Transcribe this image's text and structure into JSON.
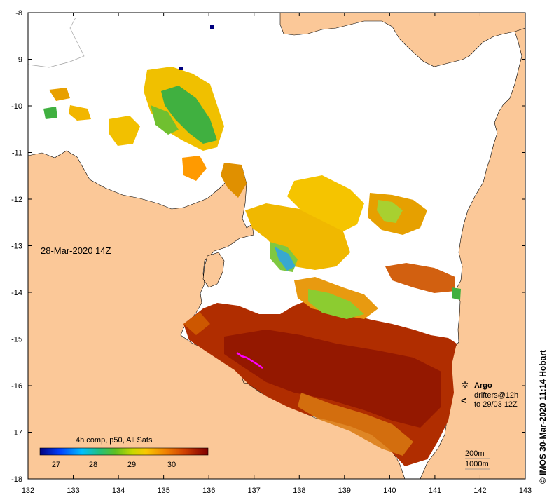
{
  "map": {
    "timestamp_label": "28-Mar-2020 14Z",
    "credit": "© IMOS 30-Mar-2020 11:14 Hobart",
    "colors": {
      "land": "#fbc898",
      "no_data": "#ffffff",
      "frame": "#000000"
    },
    "lon_ticks": [
      "132",
      "133",
      "134",
      "135",
      "136",
      "137",
      "138",
      "139",
      "140",
      "141",
      "142",
      "143"
    ],
    "lat_ticks": [
      "-8",
      "-9",
      "-10",
      "-11",
      "-12",
      "-13",
      "-14",
      "-15",
      "-16",
      "-17",
      "-18"
    ]
  },
  "colorbar": {
    "title": "4h comp, p50, All Sats",
    "tick_labels": [
      "27",
      "28",
      "29",
      "30"
    ],
    "colormap": [
      "#00007f",
      "#0040ff",
      "#00bfff",
      "#20c080",
      "#60c020",
      "#c8d800",
      "#f8c800",
      "#f08000",
      "#d04000",
      "#a01800",
      "#7f0000"
    ]
  },
  "legend": {
    "argo_label": "Argo",
    "drifters_label": "drifters@12h",
    "drifters_date": "to 29/03 12Z",
    "argo_symbol": "✲",
    "drifter_symbol": "<",
    "marker_color": "#ff00ff"
  },
  "contours": {
    "depth_200": "200m",
    "depth_1000": "1000m"
  }
}
